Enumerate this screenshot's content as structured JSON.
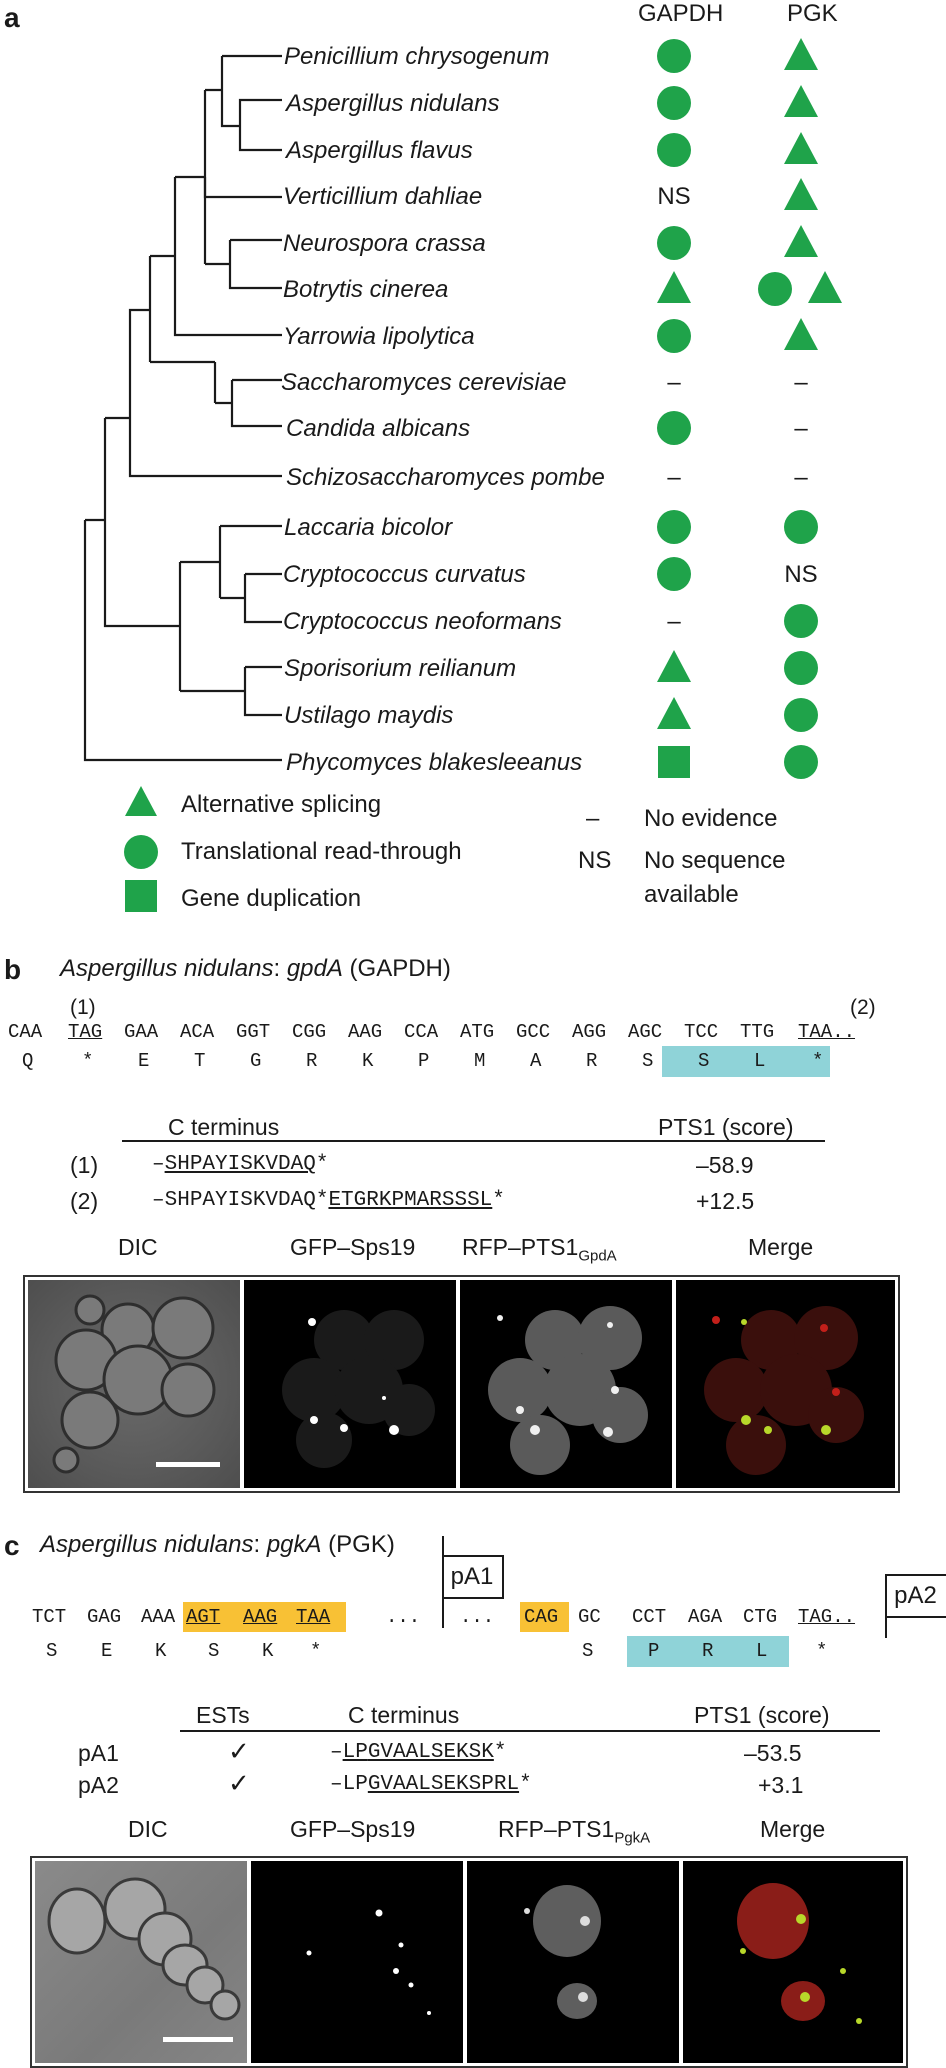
{
  "panel_a": {
    "letter": "a",
    "col_gapdh": "GAPDH",
    "col_pgk": "PGK",
    "species": [
      {
        "name": "Penicillium chrysogenum",
        "gapdh": "circle",
        "pgk": "triangle"
      },
      {
        "name": "Aspergillus nidulans",
        "gapdh": "circle",
        "pgk": "triangle"
      },
      {
        "name": "Aspergillus flavus",
        "gapdh": "circle",
        "pgk": "triangle"
      },
      {
        "name": "Verticillium dahliae",
        "gapdh": "NS",
        "pgk": "triangle"
      },
      {
        "name": "Neurospora crassa",
        "gapdh": "circle",
        "pgk": "triangle"
      },
      {
        "name": "Botrytis cinerea",
        "gapdh": "triangle",
        "pgk": "circle+triangle"
      },
      {
        "name": "Yarrowia lipolytica",
        "gapdh": "circle",
        "pgk": "triangle"
      },
      {
        "name": "Saccharomyces cerevisiae",
        "gapdh": "–",
        "pgk": "–"
      },
      {
        "name": "Candida albicans",
        "gapdh": "circle",
        "pgk": "–"
      },
      {
        "name": "Schizosaccharomyces pombe",
        "gapdh": "–",
        "pgk": "–"
      },
      {
        "name": "Laccaria bicolor",
        "gapdh": "circle",
        "pgk": "circle"
      },
      {
        "name": "Cryptococcus curvatus",
        "gapdh": "circle",
        "pgk": "NS"
      },
      {
        "name": "Cryptococcus neoformans",
        "gapdh": "–",
        "pgk": "circle"
      },
      {
        "name": "Sporisorium reilianum",
        "gapdh": "triangle",
        "pgk": "circle"
      },
      {
        "name": "Ustilago maydis",
        "gapdh": "triangle",
        "pgk": "circle"
      },
      {
        "name": "Phycomyces blakesleeanus",
        "gapdh": "square",
        "pgk": "circle"
      }
    ],
    "legend": {
      "alt_splicing": "Alternative splicing",
      "read_through": "Translational read-through",
      "gene_dup": "Gene duplication",
      "dash_symbol": "–",
      "no_evidence": "No evidence",
      "ns_symbol": "NS",
      "no_seq_line1": "No sequence",
      "no_seq_line2": "available"
    },
    "marker_color": "#1fa34a"
  },
  "panel_b": {
    "letter": "b",
    "title_species": "Aspergillus nidulans",
    "title_sep": ": ",
    "title_gene": "gpdA",
    "title_protein": " (GAPDH)",
    "mark1": "(1)",
    "mark2": "(2)",
    "codons": [
      "CAA",
      "TAG",
      "GAA",
      "ACA",
      "GGT",
      "CGG",
      "AAG",
      "CCA",
      "ATG",
      "GCC",
      "AGG",
      "AGC",
      "TCC",
      "TTG",
      "TAA.."
    ],
    "aas": [
      "Q",
      "*",
      "E",
      "T",
      "G",
      "R",
      "K",
      "P",
      "M",
      "A",
      "R",
      "S",
      "S",
      "L",
      "*"
    ],
    "table": {
      "hdr_cterm": "C terminus",
      "hdr_pts1": "PTS1 (score)",
      "row1_label": "(1)",
      "row1_dash": "–",
      "row1_seq": "SHPAYISKVDAQ",
      "row1_star": "*",
      "row1_score": "–58.9",
      "row2_label": "(2)",
      "row2_dash": "–",
      "row2_seq_a": "SHPAYISKVDAQ",
      "row2_star_a": "*",
      "row2_seq_b": "ETGRKPMARSSSL",
      "row2_star_b": "*",
      "row2_score": "+12.5"
    },
    "captions": {
      "dic": "DIC",
      "gfp": "GFP–Sps19",
      "rfp": "RFP–PTS1",
      "rfp_sub": "GpdA",
      "merge": "Merge"
    }
  },
  "panel_c": {
    "letter": "c",
    "title_species": "Aspergillus nidulans",
    "title_sep": ": ",
    "title_gene": "pgkA",
    "title_protein": " (PGK)",
    "pa1": "pA1",
    "pa2": "pA2",
    "codons_left": [
      "TCT",
      "GAG",
      "AAA",
      "AGT",
      "AAG",
      "TAA"
    ],
    "dots1": "...",
    "dots2": "...",
    "codon_cag": "CAG",
    "codons_right": [
      "GC",
      "CCT",
      "AGA",
      "CTG",
      "TAG.."
    ],
    "aas_left": [
      "S",
      "E",
      "K",
      "S",
      "K",
      "*"
    ],
    "aas_right": [
      "S",
      "P",
      "R",
      "L",
      "*"
    ],
    "table": {
      "hdr_ests": "ESTs",
      "hdr_cterm": "C terminus",
      "hdr_pts1": "PTS1 (score)",
      "row1_label": "pA1",
      "row1_check": "✓",
      "row1_dash": "–",
      "row1_seq_a": "LP",
      "row1_seq_b": "GVAALSEKSK",
      "row1_star": "*",
      "row1_score": "–53.5",
      "row2_label": "pA2",
      "row2_check": "✓",
      "row2_dash": "–",
      "row2_seq_a": "LP",
      "row2_seq_b": "GVAALSEKSPRL",
      "row2_star": "*",
      "row2_score": "+3.1"
    },
    "captions": {
      "dic": "DIC",
      "gfp": "GFP–Sps19",
      "rfp": "RFP–PTS1",
      "rfp_sub": "PgkA",
      "merge": "Merge"
    }
  }
}
